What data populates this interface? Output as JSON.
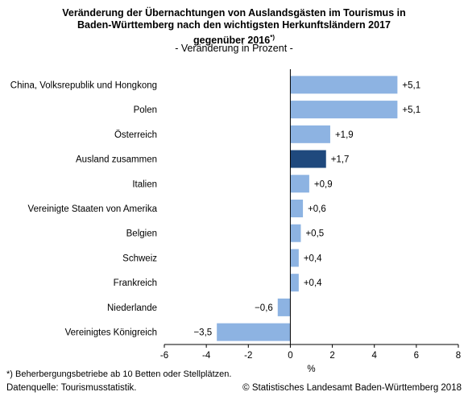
{
  "title": {
    "line1": "Veränderung der Übernachtungen von Auslandsgästen im Tourismus in",
    "line2": "Baden-Württemberg nach den wichtigsten Herkunftsländern 2017",
    "line3": "gegenüber 2016",
    "footnote_marker": "*)"
  },
  "subtitle": "- Veränderung in Prozent -",
  "footnote": "*) Beherbergungsbetriebe ab 10 Betten oder Stellplätzen.",
  "source": "Datenquelle: Tourismusstatistik.",
  "copyright": "© Statistisches Landesamt Baden-Württemberg 2018",
  "colors": {
    "bar": "#8db3e2",
    "highlight": "#1f497d",
    "axis": "#000000"
  },
  "chart_data": {
    "type": "bar",
    "orientation": "horizontal",
    "categories": [
      "China, Volksrepublik und Hongkong",
      "Polen",
      "Österreich",
      "Ausland zusammen",
      "Italien",
      "Vereinigte Staaten von Amerika",
      "Belgien",
      "Schweiz",
      "Frankreich",
      "Niederlande",
      "Vereinigtes Königreich"
    ],
    "values": [
      5.1,
      5.1,
      1.9,
      1.7,
      0.9,
      0.6,
      0.5,
      0.4,
      0.4,
      -0.6,
      -3.5
    ],
    "value_labels": [
      "+5,1",
      "+5,1",
      "+1,9",
      "+1,7",
      "+0,9",
      "+0,6",
      "+0,5",
      "+0,4",
      "+0,4",
      "−0,6",
      "−3,5"
    ],
    "highlight_index": 3,
    "xlabel": "%",
    "xlim": [
      -6,
      8
    ],
    "xticks": [
      -6,
      -4,
      -2,
      0,
      2,
      4,
      6,
      8
    ],
    "xtick_labels": [
      "-6",
      "-4",
      "-2",
      "0",
      "2",
      "4",
      "6",
      "8"
    ],
    "grid": false
  }
}
